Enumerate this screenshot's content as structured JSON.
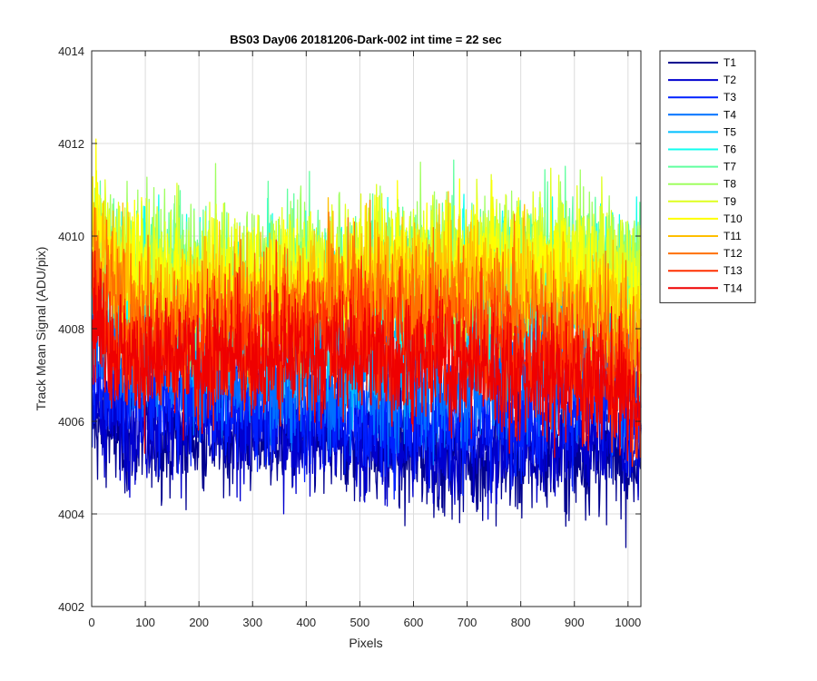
{
  "chart_data": {
    "type": "line",
    "title": "BS03 Day06 20181206-Dark-002 int time = 22 sec",
    "xlabel": "Pixels",
    "ylabel": "Track Mean Signal (ADU/pix)",
    "xlim": [
      0,
      1024
    ],
    "ylim": [
      4002,
      4014
    ],
    "xticks": [
      0,
      100,
      200,
      300,
      400,
      500,
      600,
      700,
      800,
      900,
      1000
    ],
    "yticks": [
      4002,
      4004,
      4006,
      4008,
      4010,
      4012,
      4014
    ],
    "grid": true,
    "legend_position": "outside-top-right",
    "series": [
      {
        "name": "T1",
        "color": "#00008f",
        "mean": 4005.4,
        "noise": 0.85
      },
      {
        "name": "T2",
        "color": "#0000cf",
        "mean": 4005.7,
        "noise": 0.85
      },
      {
        "name": "T3",
        "color": "#0020ff",
        "mean": 4006.3,
        "noise": 0.9
      },
      {
        "name": "T4",
        "color": "#0070ff",
        "mean": 4007.0,
        "noise": 0.95
      },
      {
        "name": "T5",
        "color": "#00bfff",
        "mean": 4008.0,
        "noise": 1.0
      },
      {
        "name": "T6",
        "color": "#10ffef",
        "mean": 4009.0,
        "noise": 1.05
      },
      {
        "name": "T7",
        "color": "#60ff9f",
        "mean": 4009.3,
        "noise": 1.05
      },
      {
        "name": "T8",
        "color": "#9fff60",
        "mean": 4009.4,
        "noise": 1.05
      },
      {
        "name": "T9",
        "color": "#dfff20",
        "mean": 4009.3,
        "noise": 1.05
      },
      {
        "name": "T10",
        "color": "#ffff00",
        "mean": 4009.1,
        "noise": 1.05
      },
      {
        "name": "T11",
        "color": "#ffbf00",
        "mean": 4008.8,
        "noise": 1.0
      },
      {
        "name": "T12",
        "color": "#ff7000",
        "mean": 4008.3,
        "noise": 1.0
      },
      {
        "name": "T13",
        "color": "#ff3000",
        "mean": 4007.6,
        "noise": 0.95
      },
      {
        "name": "T14",
        "color": "#ef0000",
        "mean": 4007.2,
        "noise": 0.95
      }
    ]
  }
}
